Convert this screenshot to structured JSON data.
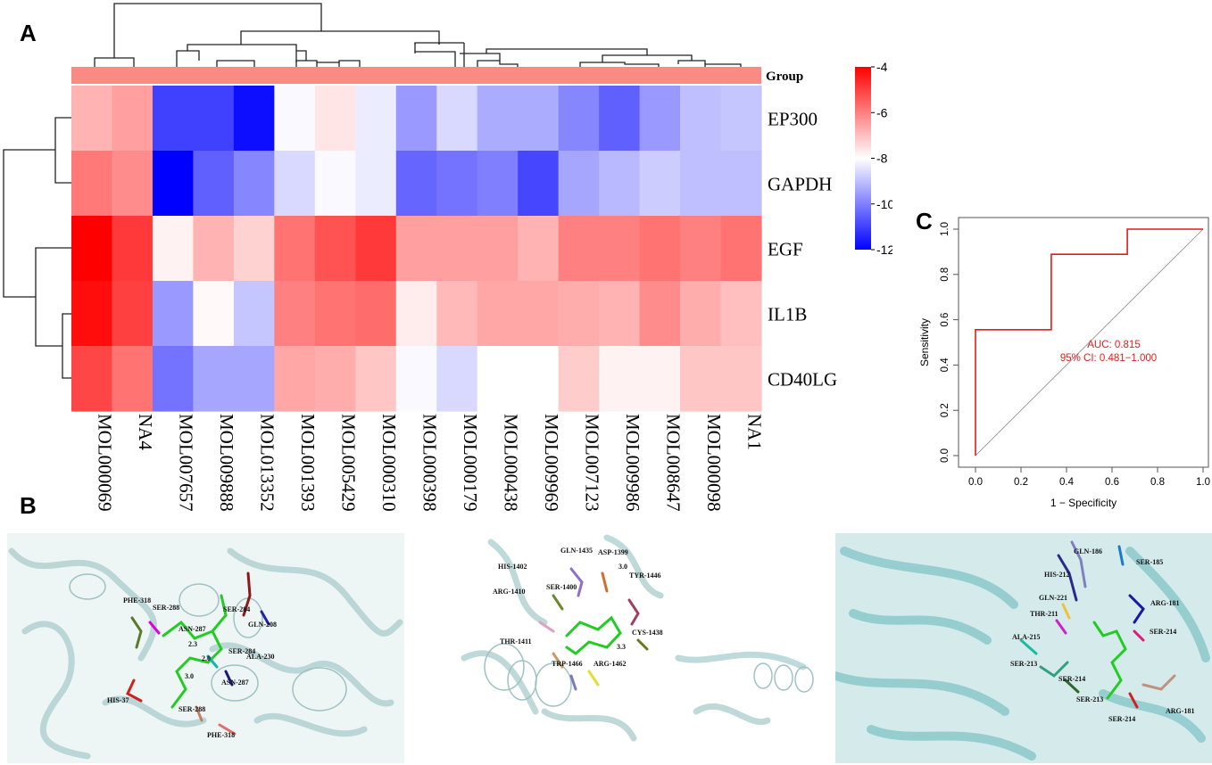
{
  "panels": {
    "a": "A",
    "b": "B",
    "c": "C"
  },
  "chart_data": [
    {
      "type": "heatmap",
      "rows": [
        "EP300",
        "GAPDH",
        "EGF",
        "IL1B",
        "CD40LG"
      ],
      "columns": [
        "MOL000069",
        "NA4",
        "MOL007657",
        "MOL009888",
        "MOL013352",
        "MOL001393",
        "MOL005429",
        "MOL000310",
        "MOL000398",
        "MOL000179",
        "MOL000438",
        "MOL009969",
        "MOL007123",
        "MOL009986",
        "MOL008647",
        "MOL000098",
        "NA1"
      ],
      "values": [
        [
          -6.8,
          -6.5,
          -11.0,
          -11.0,
          -11.8,
          -8.1,
          -7.6,
          -8.3,
          -9.6,
          -8.6,
          -9.3,
          -9.3,
          -9.9,
          -10.5,
          -9.6,
          -9.0,
          -8.9
        ],
        [
          -5.9,
          -6.2,
          -12.0,
          -10.5,
          -9.9,
          -8.6,
          -8.1,
          -8.3,
          -10.4,
          -10.2,
          -10.0,
          -10.9,
          -9.4,
          -9.1,
          -8.8,
          -9.0,
          -9.0
        ],
        [
          -4.0,
          -4.9,
          -7.8,
          -6.8,
          -7.3,
          -5.8,
          -5.3,
          -4.9,
          -6.5,
          -6.5,
          -6.5,
          -6.8,
          -6.0,
          -6.0,
          -5.8,
          -6.0,
          -5.8
        ],
        [
          -4.2,
          -5.0,
          -9.6,
          -7.9,
          -8.9,
          -6.0,
          -5.8,
          -5.7,
          -7.7,
          -6.9,
          -6.6,
          -6.6,
          -6.7,
          -6.8,
          -6.2,
          -6.7,
          -7.0
        ],
        [
          -5.1,
          -5.8,
          -10.2,
          -9.4,
          -9.4,
          -6.6,
          -6.7,
          -7.1,
          -8.1,
          -8.6,
          -8.0,
          -8.0,
          -7.2,
          -7.8,
          -7.8,
          -7.1,
          -7.1
        ]
      ],
      "group_label": "Group",
      "colorbar": {
        "min": -12,
        "max": -4,
        "ticks": [
          "-4",
          "-6",
          "-8",
          "-10",
          "-12"
        ],
        "low_color": "#0000ff",
        "mid_color": "#ffffff",
        "high_color": "#ff0000"
      },
      "group_color": "#fa8a84"
    },
    {
      "type": "line",
      "title": "",
      "xlabel": "1 − Specificity",
      "ylabel": "Sensitivity",
      "xlim": [
        0,
        1
      ],
      "ylim": [
        0,
        1
      ],
      "x": [
        0,
        0,
        0.333,
        0.333,
        0.667,
        0.667,
        1
      ],
      "y": [
        0,
        0.556,
        0.556,
        0.889,
        0.889,
        1,
        1
      ],
      "x_ticks": [
        "0.0",
        "0.2",
        "0.4",
        "0.6",
        "0.8",
        "1.0"
      ],
      "y_ticks": [
        "0.0",
        "0.2",
        "0.4",
        "0.6",
        "0.8",
        "1.0"
      ],
      "auc_text": "AUC: 0.815",
      "ci_text": "95% CI: 0.481−1.000",
      "curve_color": "#e41a1c"
    }
  ],
  "docking": [
    {
      "residues": [
        "PHE-318",
        "SER-288",
        "ASN-287",
        "SER-284",
        "GLN-208",
        "SER-284",
        "ALA-230",
        "HIS-37",
        "ASN-287",
        "SER-288",
        "PHE-318"
      ],
      "distances": [
        "2.3",
        "2.0",
        "3.0"
      ]
    },
    {
      "residues": [
        "GLN-1435",
        "ASP-1399",
        "HIS-1402",
        "ARG-1410",
        "SER-1400",
        "TYR-1446",
        "THR-1411",
        "CYS-1438",
        "TRP-1466",
        "ARG-1462"
      ],
      "distances": [
        "3.0",
        "3.3"
      ]
    },
    {
      "residues": [
        "GLN-186",
        "SER-185",
        "HIS-212",
        "GLN-221",
        "THR-211",
        "ARG-181",
        "ALA-215",
        "SER-214",
        "SER-213",
        "SER-214",
        "SER-213",
        "SER-214",
        "ARG-181"
      ],
      "distances": []
    }
  ]
}
